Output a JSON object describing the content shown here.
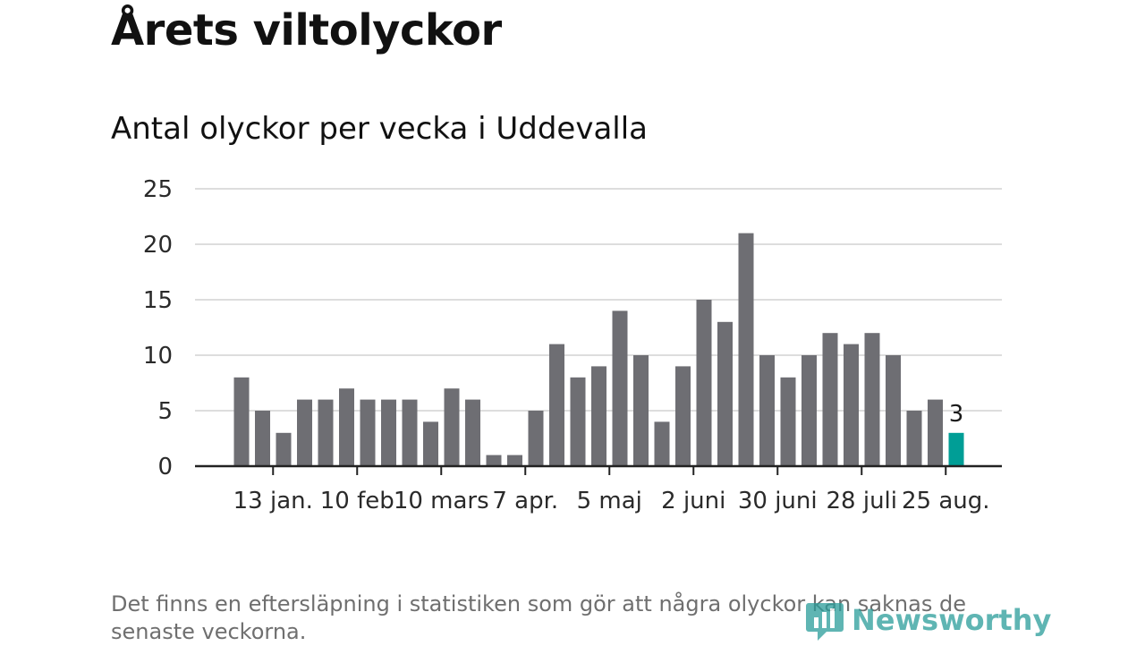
{
  "header": {
    "title": "Årets viltolyckor",
    "subtitle": "Antal olyckor per vecka i Uddevalla"
  },
  "footnote": "Det finns en eftersläpning i statistiken som gör att några olyckor kan saknas de senaste veckorna.",
  "brand": {
    "name": "Newsworthy",
    "color": "#2a9d9a"
  },
  "colors": {
    "bar": "#6e6e73",
    "highlight": "#009e96",
    "grid": "#dddddd",
    "axis": "#222222"
  },
  "chart_data": {
    "type": "bar",
    "title": "Antal olyckor per vecka i Uddevalla",
    "xlabel": "",
    "ylabel": "",
    "ylim": [
      0,
      25
    ],
    "yticks": [
      0,
      5,
      10,
      15,
      20,
      25
    ],
    "grid": true,
    "values": [
      8,
      5,
      3,
      6,
      6,
      7,
      6,
      6,
      6,
      4,
      7,
      6,
      1,
      1,
      5,
      11,
      8,
      9,
      14,
      10,
      4,
      9,
      15,
      13,
      21,
      10,
      8,
      10,
      12,
      11,
      12,
      10,
      5,
      6,
      3
    ],
    "highlight_index": 34,
    "highlight_label": "3",
    "xtick_positions": [
      1.5,
      5.5,
      9.5,
      13.5,
      17.5,
      21.5,
      25.5,
      29.5,
      33.5
    ],
    "xtick_labels": [
      "13 jan.",
      "10 feb",
      "10 mars",
      "7 apr.",
      "5 maj",
      "2 juni",
      "30 juni",
      "28 juli",
      "25 aug."
    ]
  }
}
